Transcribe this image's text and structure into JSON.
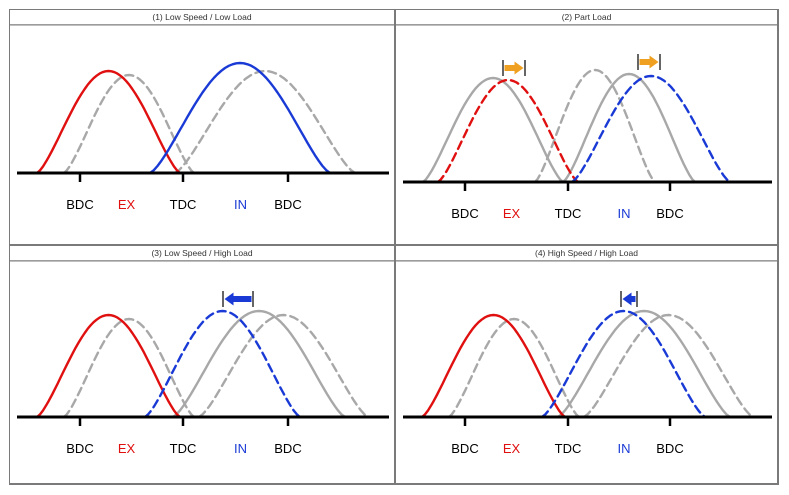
{
  "figure": {
    "panels": [
      {
        "title": "(1) Low Speed / Low Load",
        "labels": {
          "bdc_left": "BDC",
          "ex": "EX",
          "tdc": "TDC",
          "in": "IN",
          "bdc_right": "BDC"
        },
        "has_arrow": false,
        "arrow_direction": "",
        "arrow_color": "",
        "ex_style": "solid",
        "in_style": "solid"
      },
      {
        "title": "(2) Part Load",
        "labels": {
          "bdc_left": "BDC",
          "ex": "EX",
          "tdc": "TDC",
          "in": "IN",
          "bdc_right": "BDC"
        },
        "has_arrow": true,
        "arrow_direction": "right",
        "arrow_color": "#f0a020",
        "ex_style": "dashed",
        "in_style": "dashed"
      },
      {
        "title": "(3) Low Speed / High Load",
        "labels": {
          "bdc_left": "BDC",
          "ex": "EX",
          "tdc": "TDC",
          "in": "IN",
          "bdc_right": "BDC"
        },
        "has_arrow": true,
        "arrow_direction": "left",
        "arrow_color": "#1a3ad6",
        "ex_style": "solid",
        "in_style": "dashed"
      },
      {
        "title": "(4) High Speed / High Load",
        "labels": {
          "bdc_left": "BDC",
          "ex": "EX",
          "tdc": "TDC",
          "in": "IN",
          "bdc_right": "BDC"
        },
        "has_arrow": true,
        "arrow_direction": "left",
        "arrow_color": "#1a3ad6",
        "ex_style": "solid",
        "in_style": "dashed"
      }
    ],
    "colors": {
      "exhaust": "#e01010",
      "intake": "#1a3ad6",
      "reference": "#a8a8a8",
      "axis": "#000000",
      "border": "#7a7a7a"
    }
  }
}
